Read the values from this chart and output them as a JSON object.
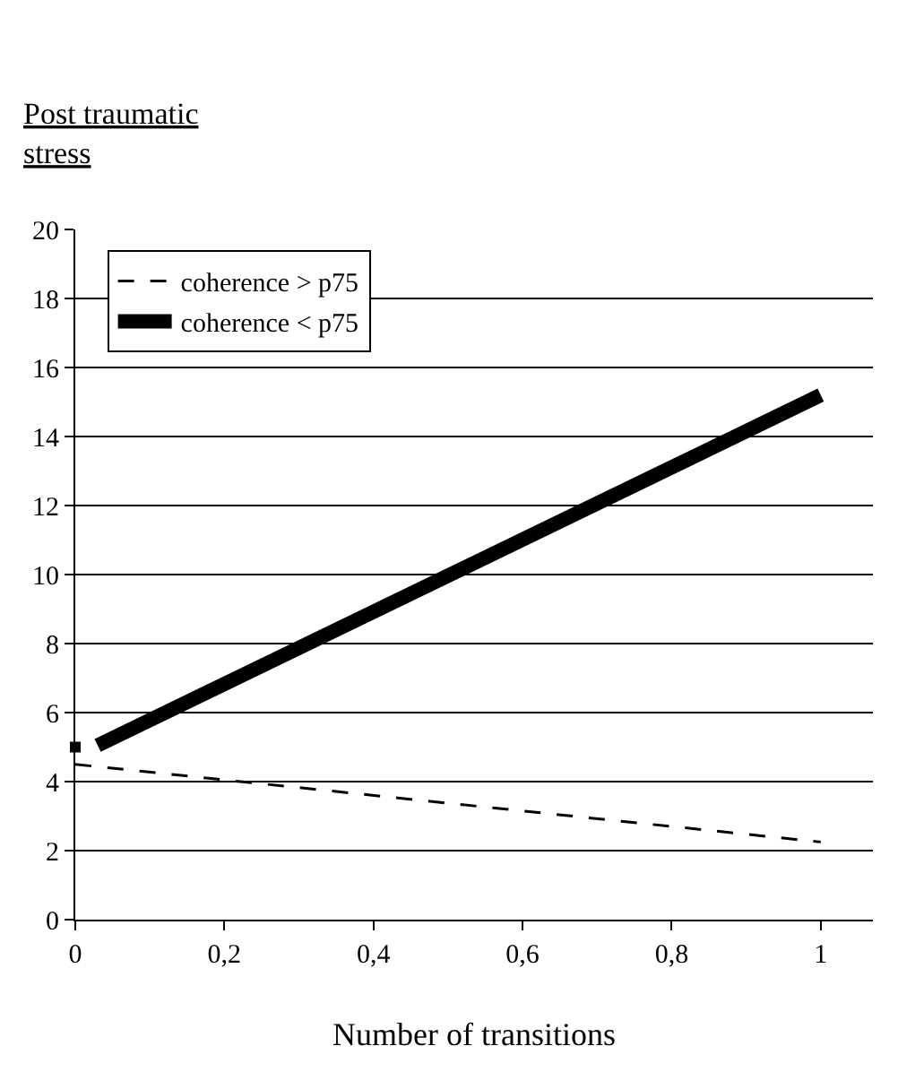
{
  "chart_data": {
    "type": "line",
    "ylabel": "Post traumatic\nstress",
    "xlabel": "Number of transitions",
    "xlim": [
      0,
      1.07
    ],
    "xticks": [
      0,
      {
        "value": 0.2,
        "label": "0,2"
      },
      {
        "value": 0.4,
        "label": "0,4"
      },
      {
        "value": 0.6,
        "label": "0,6"
      },
      {
        "value": 0.8,
        "label": "0,8"
      },
      1
    ],
    "ylim": [
      0,
      20
    ],
    "yticks": [
      0,
      2,
      4,
      6,
      8,
      10,
      12,
      14,
      16,
      18,
      20
    ],
    "grid": "y",
    "legend": "top left",
    "series": [
      {
        "name": "coherence > p75",
        "color": "#000000",
        "line_style": "dashed",
        "x": [
          0,
          1
        ],
        "values": [
          4.5,
          2.25
        ]
      },
      {
        "name": "coherence < p75",
        "color": "#000000",
        "line_style": "solid",
        "x": [
          0.03,
          1
        ],
        "values": [
          5.05,
          15.2
        ]
      },
      {
        "type": "scatter",
        "marker": "square",
        "color": "#000000",
        "x": [
          0
        ],
        "values": [
          5
        ]
      }
    ]
  }
}
